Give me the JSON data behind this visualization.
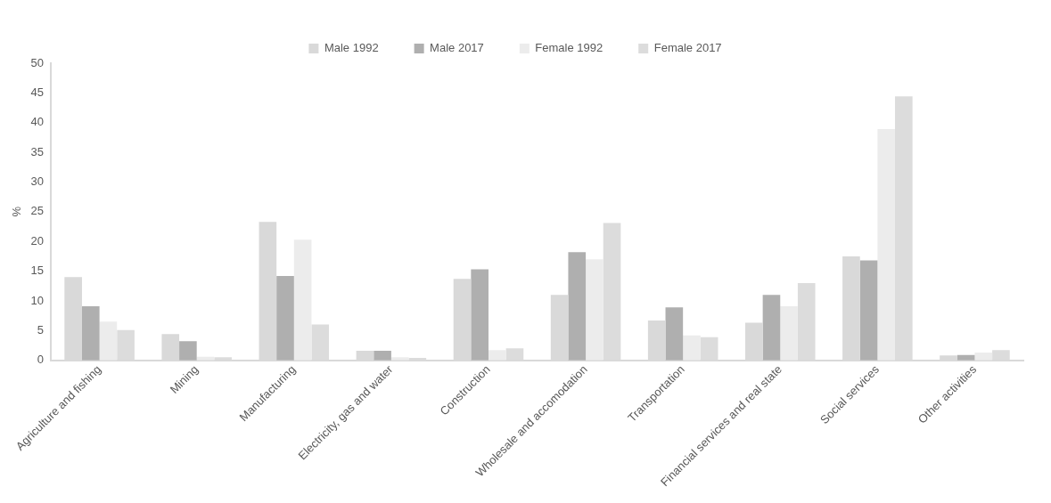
{
  "chart_data": {
    "type": "bar",
    "ylabel": "%",
    "categories": [
      "Agriculture and fishing",
      "Mining",
      "Manufacturing",
      "Electricity, gas and water",
      "Construction",
      "Wholesale and accomodation",
      "Transportation",
      "Financial services and real state",
      "Social services",
      "Other activities"
    ],
    "series": [
      {
        "name": "Male 1992",
        "color": "#d9d9d9",
        "values": [
          14,
          4.4,
          23.3,
          1.6,
          13.7,
          11,
          6.7,
          6.3,
          17.5,
          0.8
        ]
      },
      {
        "name": "Male 2017",
        "color": "#afafaf",
        "values": [
          9.1,
          3.2,
          14.2,
          1.6,
          15.3,
          18.2,
          8.9,
          11,
          16.8,
          0.9
        ]
      },
      {
        "name": "Female 1992",
        "color": "#ececec",
        "values": [
          6.5,
          0.6,
          20.3,
          0.5,
          1.7,
          17,
          4.2,
          9.1,
          38.9,
          1.3
        ]
      },
      {
        "name": "Female 2017",
        "color": "#dcdcdc",
        "values": [
          5.1,
          0.5,
          6,
          0.4,
          2,
          23.1,
          3.9,
          13,
          44.4,
          1.7
        ]
      }
    ],
    "ylim": [
      0,
      50
    ],
    "yticks": [
      0,
      5,
      10,
      15,
      20,
      25,
      30,
      35,
      40,
      45,
      50
    ],
    "grid": false,
    "legend": "top"
  }
}
